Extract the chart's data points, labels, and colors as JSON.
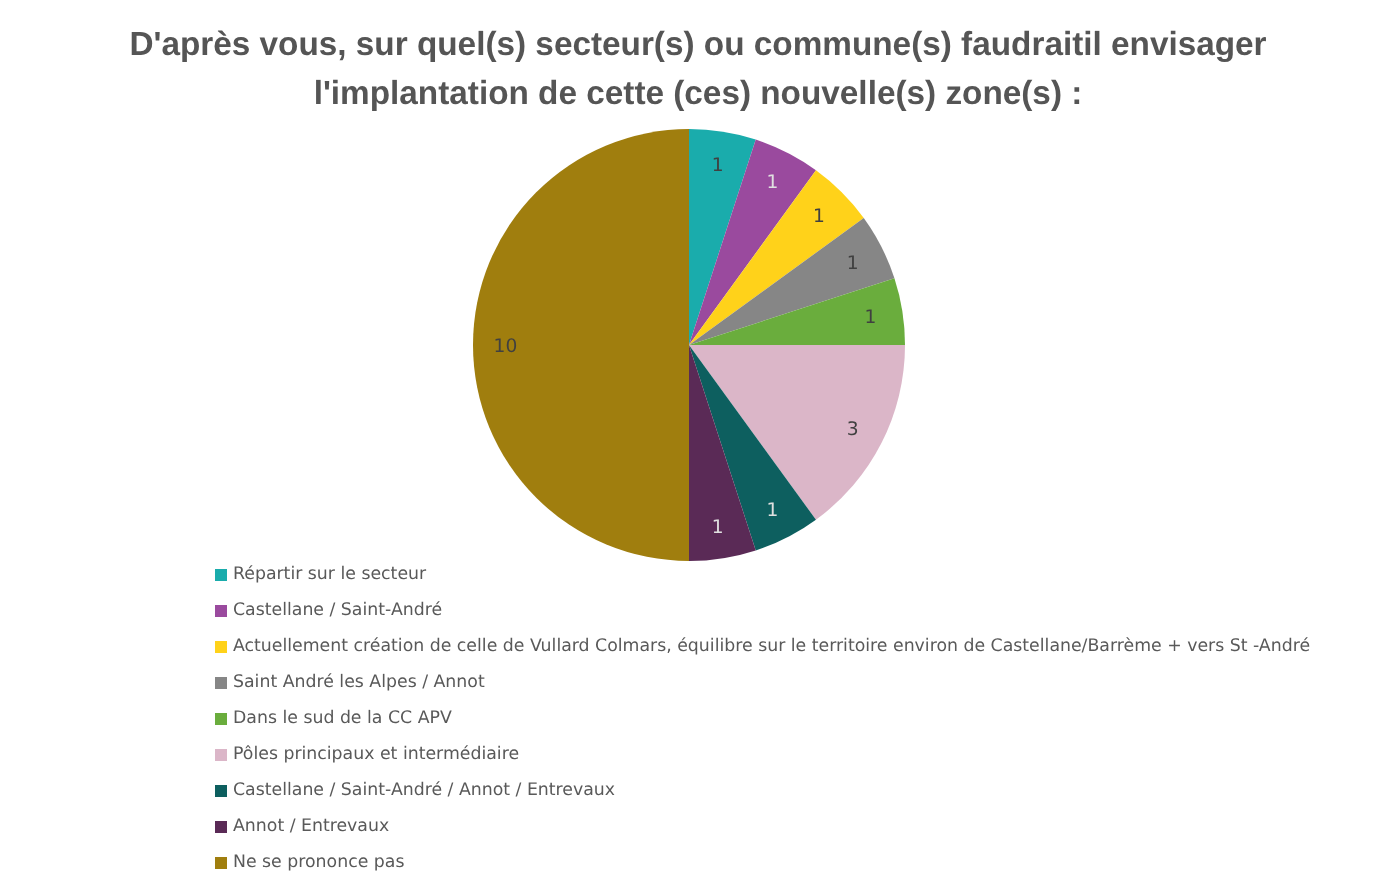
{
  "chart_data": {
    "type": "pie",
    "title": "D'après vous, sur quel(s) secteur(s) ou commune(s) faudraitil envisager\nl'implantation de cette (ces) nouvelle(s) zone(s) :",
    "categories": [
      "Répartir sur le secteur",
      "Castellane / Saint-André",
      "Actuellement création de celle de Vullard Colmars, équilibre sur le territoire environ de Castellane/Barrème + vers St -André",
      "Saint André les Alpes / Annot",
      "Dans le sud de la CC APV",
      "Pôles principaux et intermédiaire",
      "Castellane / Saint-André / Annot / Entrevaux",
      "Annot / Entrevaux",
      "Ne se prononce pas"
    ],
    "values": [
      1,
      1,
      1,
      1,
      1,
      3,
      1,
      1,
      10
    ],
    "colors": [
      "#1aacac",
      "#9a4a9e",
      "#ffd21a",
      "#868686",
      "#6aad3d",
      "#dbb6c8",
      "#0d5f5f",
      "#5a2a56",
      "#a07e0e"
    ],
    "data_labels": true,
    "legend": "bottom"
  }
}
